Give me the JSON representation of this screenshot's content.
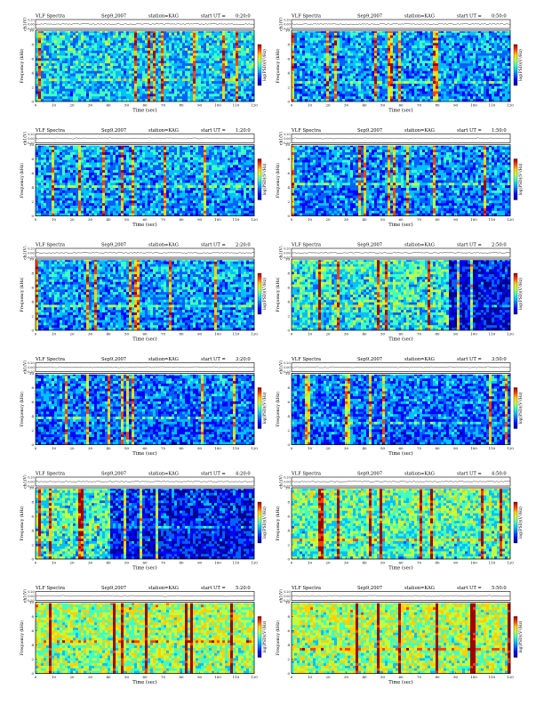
{
  "labels": {
    "prefix": "VLF Spectra",
    "date": "Sep9,2007",
    "station": "station=KAG",
    "ut_prefix": "start  UT =",
    "ch1_axis": "ch1(V)",
    "freq_axis": "Frequency (kHz)",
    "psd_axis": "log(PSD)(V²/Hz)",
    "time_axis": "Time (sec)"
  },
  "colors": {
    "spectrogram_scale": [
      "#000090",
      "#0000ff",
      "#0060ff",
      "#00c0ff",
      "#40ffc0",
      "#c0ff40",
      "#ffd000",
      "#ff4000",
      "#a00000"
    ]
  },
  "chart_data": [
    {
      "type": "heatmap",
      "start_ut": "0:20:0",
      "trace_ticks": [
        "0.20",
        "0.00",
        "-0.20"
      ],
      "freq_ticks": [
        "10",
        "8",
        "6",
        "4",
        "2",
        "0"
      ],
      "time_ticks": [
        "0",
        "10",
        "20",
        "30",
        "40",
        "50",
        "60",
        "70",
        "80",
        "90",
        "100",
        "110",
        "120"
      ],
      "xlim": [
        0,
        120
      ],
      "ylim": [
        0,
        10
      ],
      "intensity": 0.45,
      "dark_ranges": []
    },
    {
      "type": "heatmap",
      "start_ut": "0:50:0",
      "trace_ticks": [
        "0.20",
        "0.00",
        "-0.20"
      ],
      "freq_ticks": [
        "10",
        "8",
        "6",
        "4",
        "2",
        "0"
      ],
      "time_ticks": [
        "0",
        "10",
        "20",
        "30",
        "40",
        "50",
        "60",
        "70",
        "80",
        "90",
        "100",
        "110",
        "120"
      ],
      "xlim": [
        0,
        120
      ],
      "ylim": [
        0,
        10
      ],
      "intensity": 0.35,
      "dark_ranges": []
    },
    {
      "type": "heatmap",
      "start_ut": "1:20:0",
      "trace_ticks": [
        "0.20",
        "0.00",
        "-0.20"
      ],
      "freq_ticks": [
        "10",
        "8",
        "6",
        "4",
        "2",
        "0"
      ],
      "time_ticks": [
        "0",
        "10",
        "20",
        "30",
        "40",
        "50",
        "60",
        "70",
        "80",
        "90",
        "100",
        "110",
        "120"
      ],
      "xlim": [
        0,
        120
      ],
      "ylim": [
        0,
        10
      ],
      "intensity": 0.35,
      "dark_ranges": []
    },
    {
      "type": "heatmap",
      "start_ut": "1:50:0",
      "trace_ticks": [
        "0.20",
        "0.00",
        "-0.20"
      ],
      "freq_ticks": [
        "10",
        "8",
        "6",
        "4",
        "2",
        "0"
      ],
      "time_ticks": [
        "0",
        "10",
        "20",
        "30",
        "40",
        "50",
        "60",
        "70",
        "80",
        "90",
        "100",
        "110",
        "120"
      ],
      "xlim": [
        0,
        120
      ],
      "ylim": [
        0,
        10
      ],
      "intensity": 0.3,
      "dark_ranges": []
    },
    {
      "type": "heatmap",
      "start_ut": "2:20:0",
      "trace_ticks": [
        "0.20",
        "0.00",
        "-0.20"
      ],
      "freq_ticks": [
        "10",
        "8",
        "6",
        "4",
        "2",
        "0"
      ],
      "time_ticks": [
        "0",
        "10",
        "20",
        "30",
        "40",
        "50",
        "60",
        "70",
        "80",
        "90",
        "100",
        "110",
        "120"
      ],
      "xlim": [
        0,
        120
      ],
      "ylim": [
        0,
        10
      ],
      "intensity": 0.35,
      "dark_ranges": []
    },
    {
      "type": "heatmap",
      "start_ut": "2:50:0",
      "trace_ticks": [
        "0.20",
        "0.00",
        "-0.20"
      ],
      "freq_ticks": [
        "10",
        "8",
        "6",
        "4",
        "2",
        "0"
      ],
      "time_ticks": [
        "0",
        "10",
        "20",
        "30",
        "40",
        "50",
        "60",
        "70",
        "80",
        "90",
        "100",
        "110",
        "120"
      ],
      "xlim": [
        0,
        120
      ],
      "ylim": [
        0,
        10
      ],
      "intensity": 0.55,
      "dark_ranges": [
        [
          86,
          120
        ]
      ]
    },
    {
      "type": "heatmap",
      "start_ut": "3:20:0",
      "trace_ticks": [
        "0.20",
        "0.00",
        "-0.20"
      ],
      "freq_ticks": [
        "10",
        "8",
        "6",
        "4",
        "2",
        "0"
      ],
      "time_ticks": [
        "0",
        "10",
        "20",
        "30",
        "40",
        "50",
        "60",
        "70",
        "80",
        "90",
        "100",
        "110",
        "120"
      ],
      "xlim": [
        0,
        120
      ],
      "ylim": [
        0,
        10
      ],
      "intensity": 0.25,
      "dark_ranges": []
    },
    {
      "type": "heatmap",
      "start_ut": "3:50:0",
      "trace_ticks": [
        "0.20",
        "0.00",
        "-0.20"
      ],
      "freq_ticks": [
        "10",
        "8",
        "6",
        "4",
        "2",
        "0"
      ],
      "time_ticks": [
        "0",
        "10",
        "20",
        "30",
        "40",
        "50",
        "60",
        "70",
        "80",
        "90",
        "100",
        "110",
        "120"
      ],
      "xlim": [
        0,
        120
      ],
      "ylim": [
        0,
        10
      ],
      "intensity": 0.25,
      "dark_ranges": []
    },
    {
      "type": "heatmap",
      "start_ut": "4:20:0",
      "trace_ticks": [
        "0.20",
        "0.00",
        "-0.20"
      ],
      "freq_ticks": [
        "10",
        "8",
        "6",
        "4",
        "2",
        "0"
      ],
      "time_ticks": [
        "0",
        "10",
        "20",
        "30",
        "40",
        "50",
        "60",
        "70",
        "80",
        "90",
        "100",
        "110",
        "120"
      ],
      "xlim": [
        0,
        120
      ],
      "ylim": [
        0,
        10
      ],
      "intensity": 0.6,
      "dark_ranges": [
        [
          40,
          120
        ]
      ]
    },
    {
      "type": "heatmap",
      "start_ut": "4:50:0",
      "trace_ticks": [
        "0.20",
        "0.00",
        "-0.20"
      ],
      "freq_ticks": [
        "10",
        "8",
        "6",
        "4",
        "2",
        "0"
      ],
      "time_ticks": [
        "0",
        "10",
        "20",
        "30",
        "40",
        "50",
        "60",
        "70",
        "80",
        "90",
        "100",
        "110",
        "120"
      ],
      "xlim": [
        0,
        120
      ],
      "ylim": [
        0,
        10
      ],
      "intensity": 0.65,
      "dark_ranges": []
    },
    {
      "type": "heatmap",
      "start_ut": "5:20:0",
      "trace_ticks": [
        "0.20",
        "0.00",
        "-0.20"
      ],
      "freq_ticks": [
        "10",
        "8",
        "6",
        "4",
        "2",
        "0"
      ],
      "time_ticks": [
        "0",
        "10",
        "20",
        "30",
        "40",
        "50",
        "60",
        "70",
        "80",
        "90",
        "100",
        "110",
        "120"
      ],
      "xlim": [
        0,
        120
      ],
      "ylim": [
        0,
        10
      ],
      "intensity": 0.8,
      "dark_ranges": []
    },
    {
      "type": "heatmap",
      "start_ut": "5:50:0",
      "trace_ticks": [
        "0.20",
        "0.00",
        "-0.20"
      ],
      "freq_ticks": [
        "10",
        "8",
        "6",
        "4",
        "2",
        "0"
      ],
      "time_ticks": [
        "0",
        "10",
        "20",
        "30",
        "40",
        "50",
        "60",
        "70",
        "80",
        "90",
        "100",
        "110",
        "120"
      ],
      "xlim": [
        0,
        120
      ],
      "ylim": [
        0,
        10
      ],
      "intensity": 0.8,
      "dark_ranges": []
    }
  ]
}
